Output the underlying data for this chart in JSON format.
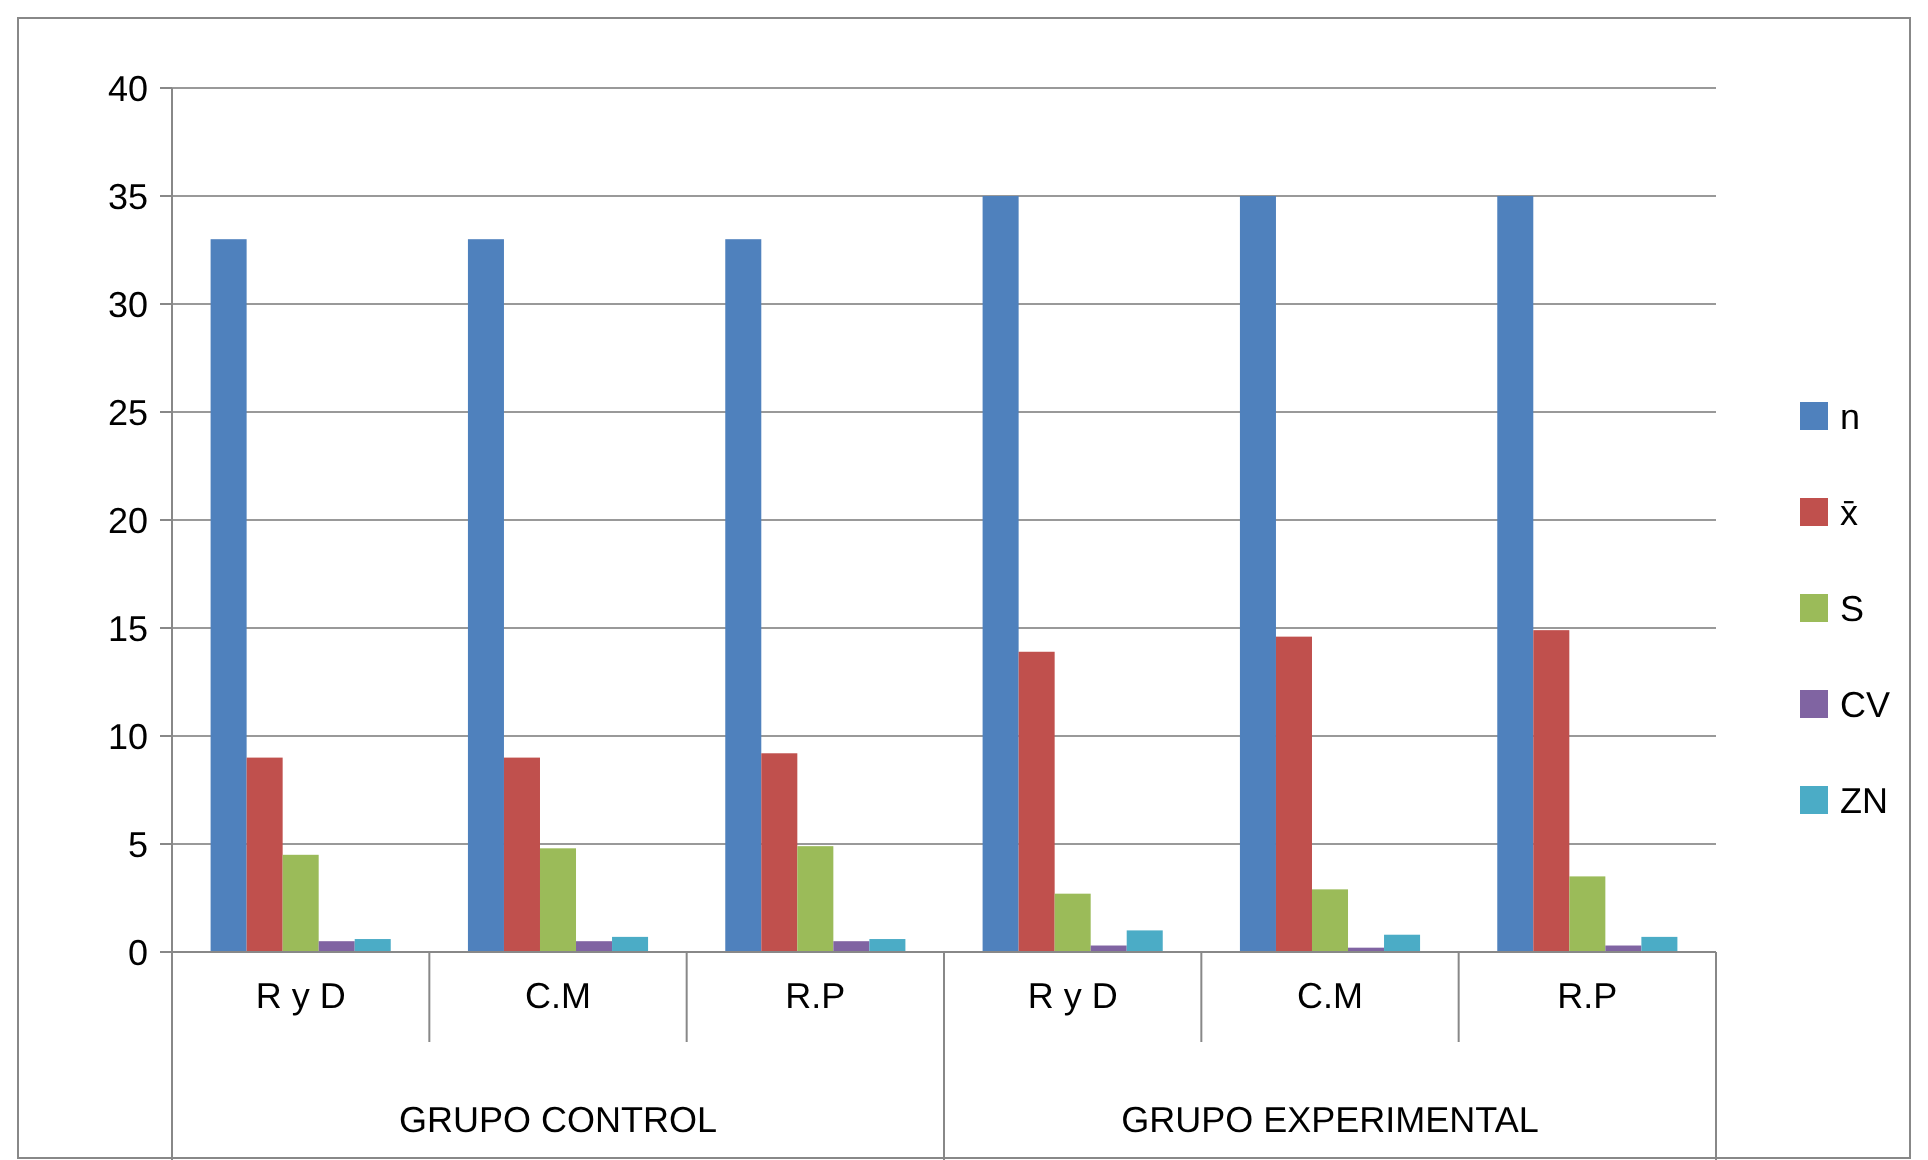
{
  "chart_data": {
    "type": "bar",
    "categories": [
      "R y D",
      "C.M",
      "R.P",
      "R y D",
      "C.M",
      "R.P"
    ],
    "series": [
      {
        "name": "n",
        "color": "#4f81bd",
        "values": [
          33,
          33,
          33,
          35,
          35,
          35
        ]
      },
      {
        "name": "x̄",
        "color": "#c0504d",
        "values": [
          9,
          9,
          9.2,
          13.9,
          14.6,
          14.9
        ]
      },
      {
        "name": "S",
        "color": "#9bbb59",
        "values": [
          4.5,
          4.8,
          4.9,
          2.7,
          2.9,
          3.5
        ]
      },
      {
        "name": "CV",
        "color": "#8064a2",
        "values": [
          0.5,
          0.5,
          0.5,
          0.3,
          0.2,
          0.3
        ]
      },
      {
        "name": "ZN",
        "color": "#4bacc6",
        "values": [
          0.6,
          0.7,
          0.6,
          1,
          0.8,
          0.7
        ]
      }
    ],
    "annotations": [
      "GRUPO CONTROL",
      "GRUPO EXPERIMENTAL"
    ],
    "ylim": [
      0,
      40
    ],
    "yticks": [
      0,
      5,
      10,
      15,
      20,
      25,
      30,
      35,
      40
    ],
    "grid": "y",
    "legend": "right"
  }
}
